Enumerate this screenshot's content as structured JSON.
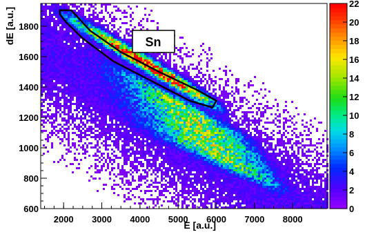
{
  "chart_data": {
    "type": "heatmap",
    "title": "",
    "xlabel": "E [a.u.]",
    "ylabel": "dE [a.u.]",
    "xlim": [
      1400,
      8900
    ],
    "ylim": [
      600,
      1950
    ],
    "x_ticks": [
      2000,
      3000,
      4000,
      5000,
      6000,
      7000,
      8000
    ],
    "y_ticks": [
      600,
      800,
      1000,
      1200,
      1400,
      1600,
      1800
    ],
    "colorbar": {
      "min": 0,
      "max": 22,
      "ticks": [
        0,
        2,
        4,
        6,
        8,
        10,
        12,
        14,
        16,
        18,
        20,
        22
      ]
    },
    "grid": false,
    "annotations": [
      {
        "text": "Sn",
        "type": "gate-label",
        "at": {
          "x": 4150,
          "y": 1760
        }
      }
    ],
    "gate": {
      "label": "Sn",
      "polygon": [
        [
          1900,
          1905
        ],
        [
          2200,
          1905
        ],
        [
          2700,
          1770
        ],
        [
          3500,
          1630
        ],
        [
          4500,
          1500
        ],
        [
          5500,
          1380
        ],
        [
          6000,
          1310
        ],
        [
          5900,
          1265
        ],
        [
          5300,
          1310
        ],
        [
          4300,
          1440
        ],
        [
          3300,
          1570
        ],
        [
          2500,
          1720
        ],
        [
          2050,
          1830
        ],
        [
          1900,
          1880
        ]
      ]
    },
    "ridges": [
      {
        "name": "Sn",
        "x_range": [
          2000,
          6000
        ],
        "start": [
          2000,
          1880
        ],
        "end": [
          6000,
          1280
        ],
        "peak": 22
      },
      {
        "name": "",
        "x_range": [
          2600,
          7000
        ],
        "start": [
          2600,
          1620
        ],
        "end": [
          7000,
          1020
        ],
        "peak": 10
      },
      {
        "name": "",
        "x_range": [
          2800,
          7300
        ],
        "start": [
          2800,
          1520
        ],
        "end": [
          7300,
          920
        ],
        "peak": 10
      },
      {
        "name": "",
        "x_range": [
          3000,
          7500
        ],
        "start": [
          3000,
          1420
        ],
        "end": [
          7500,
          840
        ],
        "peak": 9
      },
      {
        "name": "",
        "x_range": [
          3200,
          7700
        ],
        "start": [
          3200,
          1320
        ],
        "end": [
          7700,
          770
        ],
        "peak": 8
      },
      {
        "name": "",
        "x_range": [
          3500,
          7800
        ],
        "start": [
          3500,
          1220
        ],
        "end": [
          7800,
          720
        ],
        "peak": 7
      }
    ]
  }
}
